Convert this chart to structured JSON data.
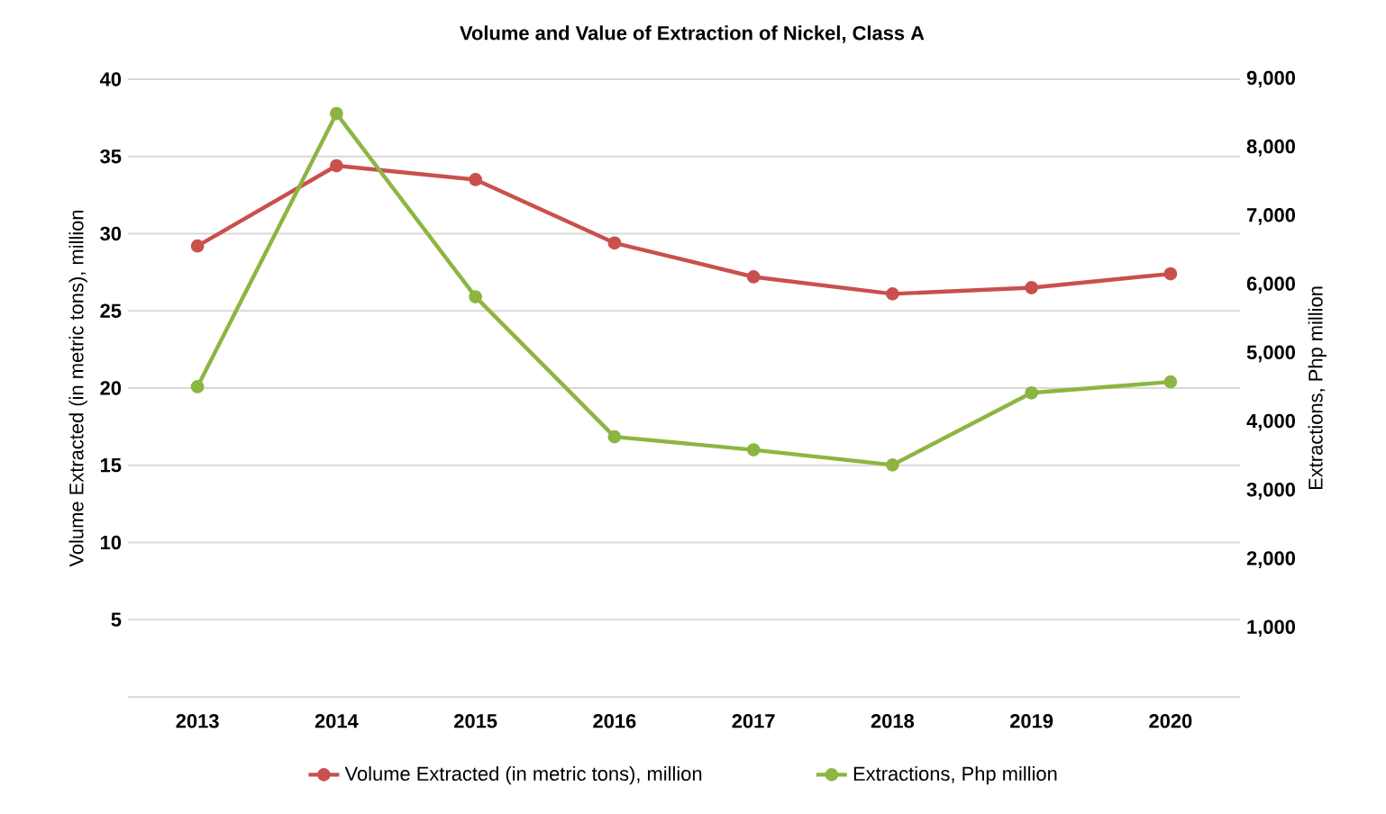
{
  "chart_data": {
    "type": "line",
    "title": "Volume and Value of Extraction of Nickel, Class A",
    "categories": [
      "2013",
      "2014",
      "2015",
      "2016",
      "2017",
      "2018",
      "2019",
      "2020"
    ],
    "series": [
      {
        "name": "Volume Extracted (in metric tons), million",
        "color": "#c9504d",
        "values": [
          29.2,
          34.4,
          33.5,
          29.4,
          27.2,
          26.1,
          26.5,
          27.4
        ]
      },
      {
        "name": "Extractions, Php million",
        "color": "#8db542",
        "axis": "y2",
        "values": [
          4520,
          8500,
          5830,
          3790,
          3600,
          3380,
          4430,
          4590
        ]
      }
    ],
    "ylabel": "Volume Extracted (in metric tons), million",
    "y2label": "Extractions, Php million",
    "ylim": [
      0,
      40
    ],
    "yticks": [
      {
        "value": 0,
        "label": null
      },
      5,
      10,
      15,
      20,
      25,
      30,
      35,
      40
    ],
    "y2lim": [
      0,
      9000
    ],
    "y2ticks": [
      {
        "value": 0,
        "label": null
      },
      {
        "value": 1000,
        "label": "1,000"
      },
      {
        "value": 2000,
        "label": "2,000"
      },
      {
        "value": 3000,
        "label": "3,000"
      },
      {
        "value": 4000,
        "label": "4,000"
      },
      {
        "value": 5000,
        "label": "5,000"
      },
      {
        "value": 6000,
        "label": "6,000"
      },
      {
        "value": 7000,
        "label": "7,000"
      },
      {
        "value": 8000,
        "label": "8,000"
      },
      {
        "value": 9000,
        "label": "9,000"
      }
    ],
    "grid": "y",
    "legend": "bottom",
    "marker": "circle",
    "line_style": "solid"
  }
}
